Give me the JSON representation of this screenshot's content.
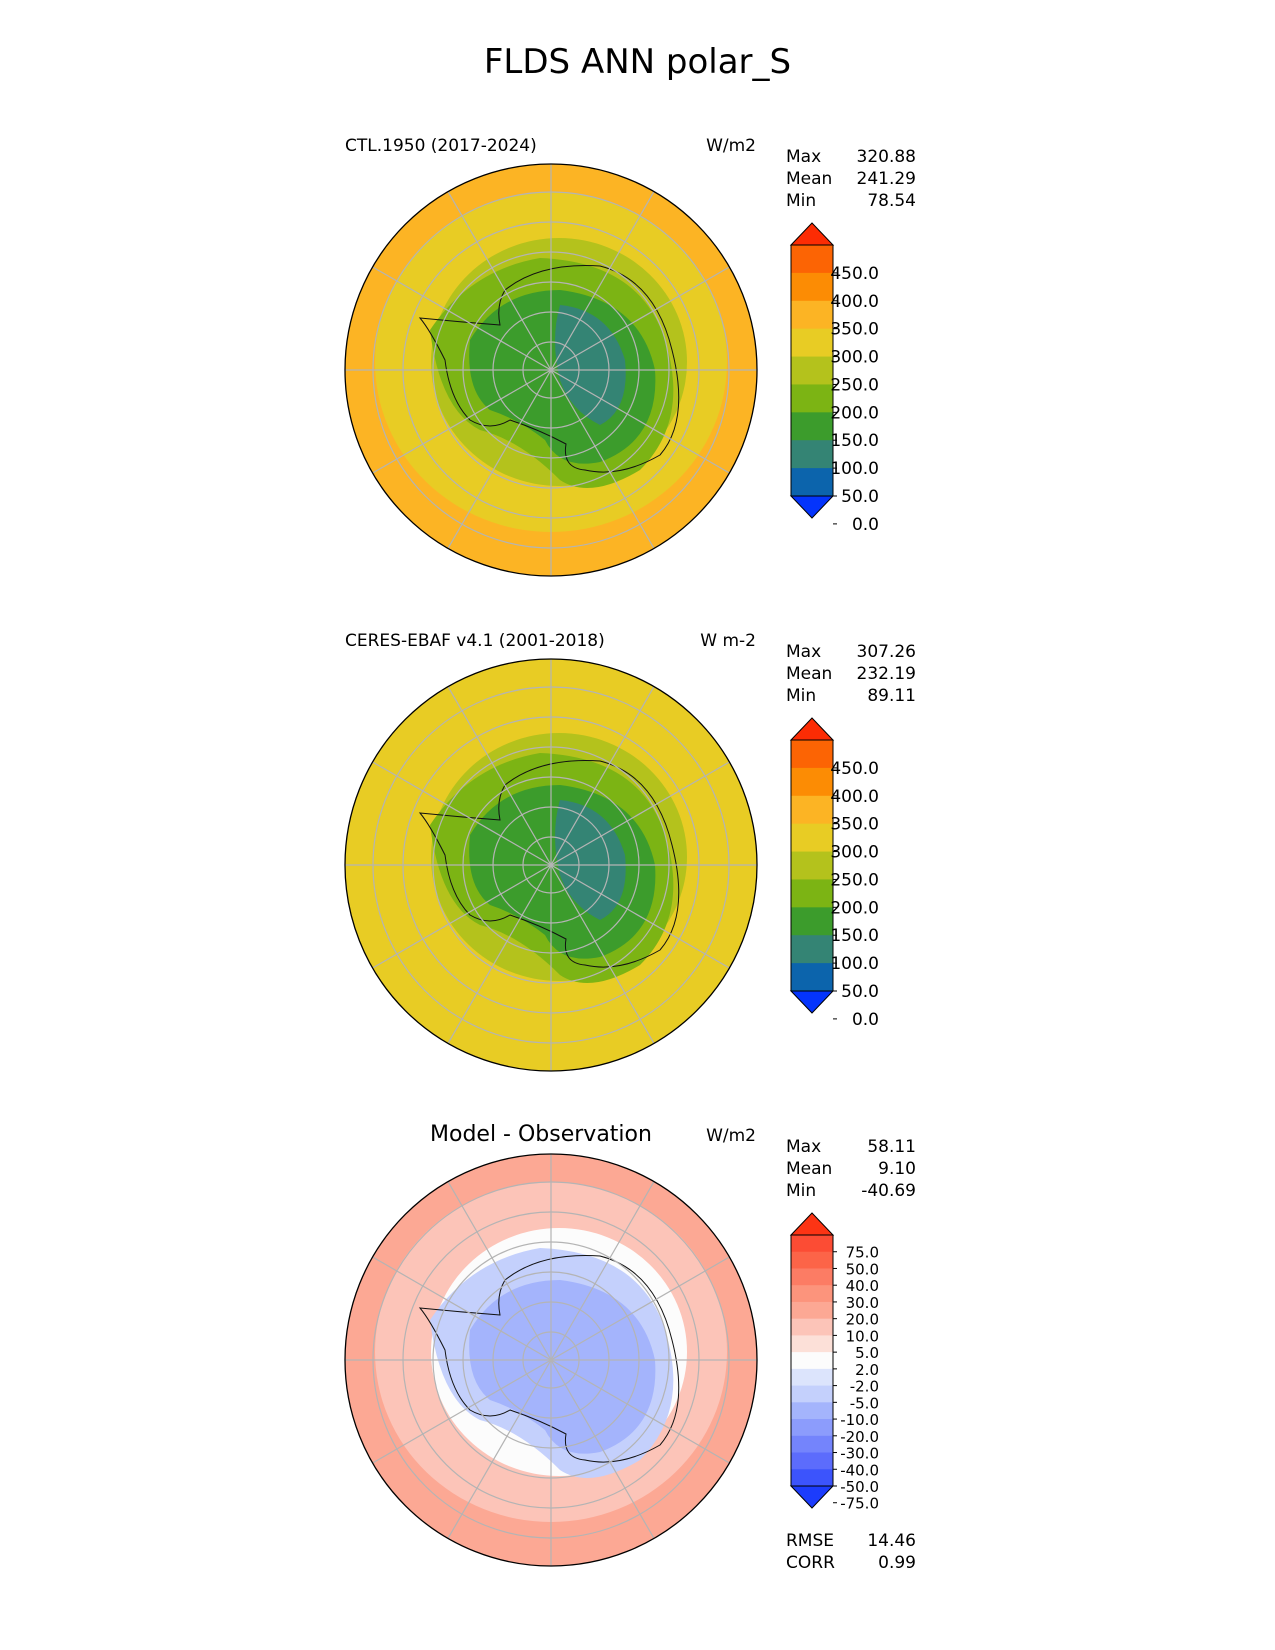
{
  "title": "FLDS ANN polar_S",
  "panels": [
    {
      "title": "CTL.1950 (2017-2024)",
      "units": "W/m2",
      "stats": [
        {
          "label": "Max",
          "value": "320.88"
        },
        {
          "label": "Mean",
          "value": "241.29"
        },
        {
          "label": "Min",
          "value": "78.54"
        }
      ],
      "fill": {
        "outer": "#fcb424",
        "mid": "#e8cc24",
        "inner1": "#b4c21c",
        "inner2": "#7cb414",
        "inner3": "#3c9c2c",
        "core": "#348474"
      }
    },
    {
      "title": "CERES-EBAF v4.1 (2001-2018)",
      "units": "W m-2",
      "stats": [
        {
          "label": "Max",
          "value": "307.26"
        },
        {
          "label": "Mean",
          "value": "232.19"
        },
        {
          "label": "Min",
          "value": "89.11"
        }
      ],
      "fill": {
        "outer": "#e8cc24",
        "mid": "#e8cc24",
        "inner1": "#b4c21c",
        "inner2": "#7cb414",
        "inner3": "#3c9c2c",
        "core": "#348474"
      }
    },
    {
      "title": "Model - Observation",
      "units": "W/m2",
      "stats": [
        {
          "label": "Max",
          "value": "58.11"
        },
        {
          "label": "Mean",
          "value": "9.10"
        },
        {
          "label": "Min",
          "value": "-40.69"
        }
      ],
      "extra_stats": [
        {
          "label": "RMSE",
          "value": "14.46"
        },
        {
          "label": "CORR",
          "value": "0.99"
        }
      ],
      "fill": {
        "outer": "#fca894",
        "mid": "#fcc4b8",
        "inner1": "#fcfcfc",
        "inner2": "#c4d0fc",
        "inner3": "#a4b4fc",
        "core": "#a4b4fc"
      }
    }
  ],
  "chart_data": [
    {
      "type": "heatmap",
      "title": "CTL.1950 (2017-2024)",
      "units": "W/m2",
      "projection": "south polar stereographic",
      "colorbar": {
        "ticks": [
          "450.0",
          "400.0",
          "350.0",
          "300.0",
          "250.0",
          "200.0",
          "150.0",
          "100.0",
          "50.0",
          "0.0"
        ],
        "colors": [
          "#fc2c04",
          "#fc6404",
          "#fc8c04",
          "#fcb424",
          "#e8cc24",
          "#b4c21c",
          "#7cb414",
          "#3c9c2c",
          "#348474",
          "#0c64ac",
          "#0434fc"
        ],
        "extend": "both"
      },
      "stats": {
        "max": 320.88,
        "mean": 241.29,
        "min": 78.54
      }
    },
    {
      "type": "heatmap",
      "title": "CERES-EBAF v4.1 (2001-2018)",
      "units": "W m-2",
      "projection": "south polar stereographic",
      "colorbar": {
        "ticks": [
          "450.0",
          "400.0",
          "350.0",
          "300.0",
          "250.0",
          "200.0",
          "150.0",
          "100.0",
          "50.0",
          "0.0"
        ],
        "colors": [
          "#fc2c04",
          "#fc6404",
          "#fc8c04",
          "#fcb424",
          "#e8cc24",
          "#b4c21c",
          "#7cb414",
          "#3c9c2c",
          "#348474",
          "#0c64ac",
          "#0434fc"
        ],
        "extend": "both"
      },
      "stats": {
        "max": 307.26,
        "mean": 232.19,
        "min": 89.11
      }
    },
    {
      "type": "heatmap",
      "title": "Model - Observation",
      "units": "W/m2",
      "projection": "south polar stereographic",
      "colorbar": {
        "ticks": [
          "75.0",
          "50.0",
          "40.0",
          "30.0",
          "20.0",
          "10.0",
          "5.0",
          "2.0",
          "-2.0",
          "-5.0",
          "-10.0",
          "-20.0",
          "-30.0",
          "-40.0",
          "-50.0",
          "-75.0"
        ],
        "colors": [
          "#fc3414",
          "#fc4c34",
          "#fc6448",
          "#fc7c64",
          "#fc947c",
          "#fca894",
          "#fcc4b8",
          "#fce0d8",
          "#fcfcfc",
          "#dce4fc",
          "#c4d0fc",
          "#a4b4fc",
          "#8c9cfc",
          "#7484fc",
          "#5c6cfc",
          "#3c54fc",
          "#1c3cfc"
        ],
        "extend": "both"
      },
      "stats": {
        "max": 58.11,
        "mean": 9.1,
        "min": -40.69,
        "rmse": 14.46,
        "corr": 0.99
      }
    }
  ]
}
